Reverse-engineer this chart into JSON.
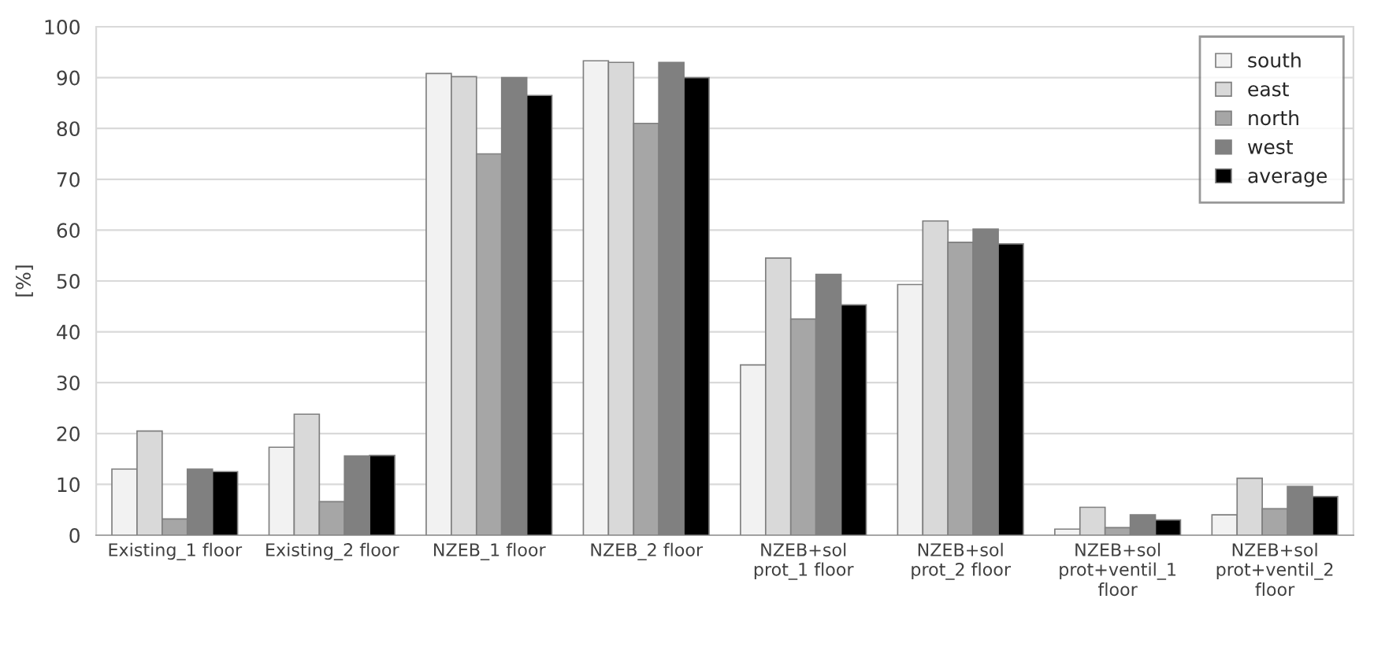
{
  "chart_data": {
    "type": "bar",
    "ylabel": "[%]",
    "categories": [
      "Existing_1 floor",
      "Existing_2 floor",
      "NZEB_1 floor",
      "NZEB_2 floor",
      "NZEB+sol\nprot_1 floor",
      "NZEB+sol\nprot_2 floor",
      "NZEB+sol\nprot+ventil_1\nfloor",
      "NZEB+sol\nprot+ventil_2\nfloor"
    ],
    "series": [
      {
        "name": "south",
        "color": "#f2f2f2",
        "values": [
          13,
          17.3,
          90.8,
          93.3,
          33.5,
          49.3,
          1.2,
          4
        ]
      },
      {
        "name": "east",
        "color": "#d9d9d9",
        "values": [
          20.5,
          23.8,
          90.2,
          93,
          54.5,
          61.8,
          5.5,
          11.2
        ]
      },
      {
        "name": "north",
        "color": "#a6a6a6",
        "values": [
          3.2,
          6.6,
          75,
          81,
          42.5,
          57.6,
          1.5,
          5.2
        ]
      },
      {
        "name": "west",
        "color": "#808080",
        "values": [
          13,
          15.6,
          90,
          93,
          51.3,
          60.2,
          4,
          9.6
        ]
      },
      {
        "name": "average",
        "color": "#000000",
        "values": [
          12.5,
          15.7,
          86.5,
          90,
          45.3,
          57.3,
          3,
          7.6
        ]
      }
    ],
    "ylim": [
      0,
      100
    ],
    "yticks": [
      0,
      10,
      20,
      30,
      40,
      50,
      60,
      70,
      80,
      90,
      100
    ],
    "grid": "y",
    "legend": "top right"
  }
}
